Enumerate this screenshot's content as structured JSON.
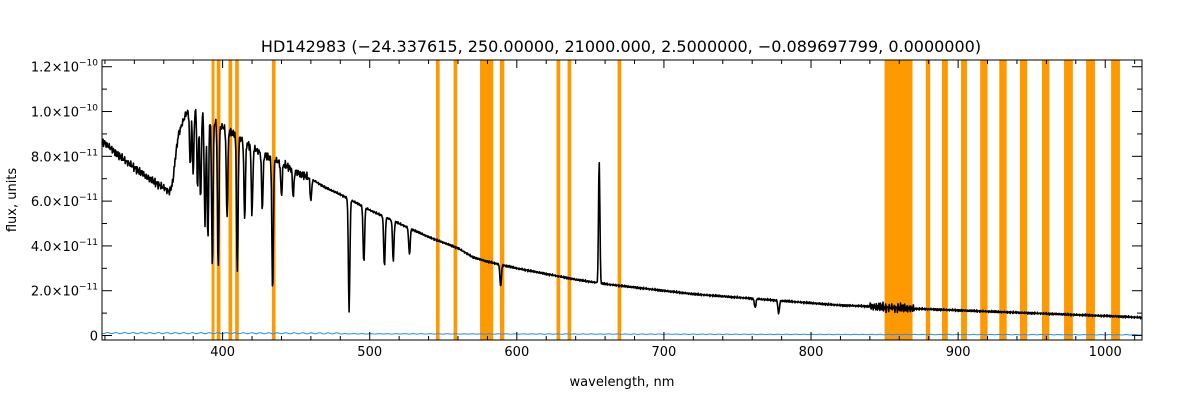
{
  "chart_data": {
    "type": "line",
    "title": "HD142983   (−24.337615, 250.00000, 21000.000, 2.5000000, −0.089697799, 0.0000000)",
    "xlabel": "wavelength, nm",
    "ylabel": "flux, units",
    "xlim": [
      318,
      1025
    ],
    "ylim": [
      -2e-12,
      1.23e-10
    ],
    "x_ticks": [
      400,
      500,
      600,
      700,
      800,
      900,
      1000
    ],
    "x_tick_labels": [
      "400",
      "500",
      "600",
      "700",
      "800",
      "900",
      "1000"
    ],
    "y_ticks": [
      0,
      2e-11,
      4e-11,
      6e-11,
      8e-11,
      1e-10,
      1.2e-10
    ],
    "y_tick_labels": [
      {
        "mant": "0",
        "exp": ""
      },
      {
        "mant": "2.0×10",
        "exp": "−11"
      },
      {
        "mant": "4.0×10",
        "exp": "−11"
      },
      {
        "mant": "6.0×10",
        "exp": "−11"
      },
      {
        "mant": "8.0×10",
        "exp": "−11"
      },
      {
        "mant": "1.0×10",
        "exp": "−10"
      },
      {
        "mant": "1.2×10",
        "exp": "−10"
      }
    ],
    "grid": false,
    "colors": {
      "flux": "#000000",
      "error": "#1e90ff",
      "mask": "#ff9900"
    },
    "series": [
      {
        "key": "flux",
        "x": [
          320,
          330,
          340,
          350,
          360,
          364,
          366,
          368,
          370,
          375,
          380,
          385,
          390,
          395,
          400,
          410,
          420,
          430,
          440,
          450,
          460,
          470,
          480,
          500,
          520,
          540,
          560,
          570,
          580,
          590,
          600,
          620,
          640,
          660,
          680,
          700,
          720,
          740,
          760,
          780,
          800,
          820,
          840,
          850,
          870,
          890,
          910,
          930,
          950,
          970,
          990,
          1010,
          1025
        ],
        "y": [
          8.6e-11,
          8e-11,
          7.5e-11,
          7e-11,
          6.6e-11,
          6.4e-11,
          6.8e-11,
          8e-11,
          9e-11,
          9.9e-11,
          1.02e-10,
          1e-10,
          9.8e-11,
          9.5e-11,
          9.3e-11,
          8.9e-11,
          8.4e-11,
          8e-11,
          7.7e-11,
          7.3e-11,
          7e-11,
          6.6e-11,
          6.3e-11,
          5.6e-11,
          5e-11,
          4.4e-11,
          3.9e-11,
          3.5e-11,
          3.3e-11,
          3.15e-11,
          3e-11,
          2.75e-11,
          2.5e-11,
          2.3e-11,
          2.15e-11,
          2e-11,
          1.85e-11,
          1.75e-11,
          1.65e-11,
          1.55e-11,
          1.45e-11,
          1.35e-11,
          1.3e-11,
          1.25e-11,
          1.2e-11,
          1.15e-11,
          1.1e-11,
          1.05e-11,
          1e-11,
          9.5e-12,
          9e-12,
          8.5e-12,
          8e-12
        ]
      },
      {
        "key": "error",
        "x": [
          320,
          1025
        ],
        "y": [
          8e-13,
          2e-13
        ]
      }
    ],
    "absorption_lines": [
      {
        "x": 378,
        "depth": 2.5e-11
      },
      {
        "x": 380,
        "depth": 3e-11
      },
      {
        "x": 383,
        "depth": 3.5e-11
      },
      {
        "x": 385,
        "depth": 4e-11
      },
      {
        "x": 388,
        "depth": 5e-11
      },
      {
        "x": 390,
        "depth": 5.5e-11
      },
      {
        "x": 393,
        "depth": 6.5e-11
      },
      {
        "x": 397,
        "depth": 6.5e-11
      },
      {
        "x": 403,
        "depth": 4e-11
      },
      {
        "x": 410,
        "depth": 6.2e-11
      },
      {
        "x": 415,
        "depth": 3.5e-11
      },
      {
        "x": 420,
        "depth": 3e-11
      },
      {
        "x": 427,
        "depth": 2.5e-11
      },
      {
        "x": 434,
        "depth": 6e-11
      },
      {
        "x": 440,
        "depth": 1.5e-11
      },
      {
        "x": 448,
        "depth": 1.2e-11
      },
      {
        "x": 460,
        "depth": 1e-11
      },
      {
        "x": 486,
        "depth": 5e-11
      },
      {
        "x": 496,
        "depth": 2.5e-11
      },
      {
        "x": 510,
        "depth": 2.2e-11
      },
      {
        "x": 516,
        "depth": 1.8e-11
      },
      {
        "x": 527,
        "depth": 1.2e-11
      },
      {
        "x": 589,
        "depth": 1e-11
      },
      {
        "x": 762,
        "depth": 4e-12
      },
      {
        "x": 778,
        "depth": 6e-12
      }
    ],
    "emission_lines": [
      {
        "x": 656,
        "height": 5.5e-11
      }
    ],
    "masked_bands": [
      [
        392.5,
        394.5
      ],
      [
        396.0,
        398.5
      ],
      [
        404.0,
        406.5
      ],
      [
        408.5,
        411.0
      ],
      [
        433.5,
        436.0
      ],
      [
        545.0,
        547.5
      ],
      [
        557.0,
        559.5
      ],
      [
        575.0,
        584.0
      ],
      [
        588.5,
        591.5
      ],
      [
        627.0,
        629.5
      ],
      [
        634.5,
        637.0
      ],
      [
        668.5,
        671.0
      ],
      [
        850.0,
        869.0
      ],
      [
        878.0,
        881.0
      ],
      [
        889.0,
        893.0
      ],
      [
        902.0,
        906.0
      ],
      [
        915.0,
        920.0
      ],
      [
        928.0,
        933.0
      ],
      [
        942.0,
        947.0
      ],
      [
        957.0,
        962.0
      ],
      [
        972.0,
        978.0
      ],
      [
        987.0,
        993.0
      ],
      [
        1004.0,
        1010.0
      ]
    ]
  }
}
